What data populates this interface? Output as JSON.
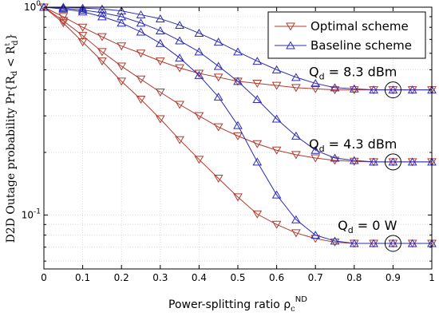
{
  "chart_data": {
    "type": "line",
    "xlabel": "Power-splitting ratio ρ",
    "xlabel_sub": "c",
    "xlabel_sup": "ND",
    "ylabel": "D2D Outage probability Pr{R",
    "ylabel_sub": "d",
    "ylabel_mid": " < R",
    "ylabel_sup2": "t",
    "ylabel_sub2": "d",
    "ylabel_end": "}",
    "yscale": "log",
    "xlim": [
      0,
      1
    ],
    "ylim": [
      0.055,
      1.0
    ],
    "x_ticks": [
      "0",
      "0.1",
      "0.2",
      "0.3",
      "0.4",
      "0.5",
      "0.6",
      "0.7",
      "0.8",
      "0.9",
      "1"
    ],
    "y_ticks": [
      {
        "base": "10",
        "exp": "0",
        "value": 1.0
      },
      {
        "base": "10",
        "exp": "-1",
        "value": 0.1
      }
    ],
    "grid": true,
    "legend_position": "top-right",
    "legend": [
      {
        "label": "Optimal scheme",
        "color": "#b03a2e",
        "marker": "triangle-down"
      },
      {
        "label": "Baseline scheme",
        "color": "#2b2bb5",
        "marker": "triangle-up"
      }
    ],
    "annotations": [
      {
        "text": "Q",
        "sub": "d",
        "rest": " = 8.3 dBm",
        "x": 0.9,
        "y": 0.4
      },
      {
        "text": "Q",
        "sub": "d",
        "rest": " = 4.3 dBm",
        "x": 0.9,
        "y": 0.18
      },
      {
        "text": "Q",
        "sub": "d",
        "rest": " = 0 W",
        "x": 0.9,
        "y": 0.073
      }
    ],
    "x": [
      0,
      0.05,
      0.1,
      0.15,
      0.2,
      0.25,
      0.3,
      0.35,
      0.4,
      0.45,
      0.5,
      0.55,
      0.6,
      0.65,
      0.7,
      0.75,
      0.8,
      0.85,
      0.9,
      0.95,
      1.0
    ],
    "series": [
      {
        "name": "Optimal scheme",
        "group": "8.3 dBm",
        "color": "#b03a2e",
        "marker": "down",
        "values": [
          1.0,
          0.9,
          0.8,
          0.72,
          0.65,
          0.6,
          0.55,
          0.51,
          0.48,
          0.46,
          0.44,
          0.43,
          0.42,
          0.41,
          0.405,
          0.4,
          0.4,
          0.4,
          0.4,
          0.4,
          0.4
        ]
      },
      {
        "name": "Optimal scheme",
        "group": "4.3 dBm",
        "color": "#b03a2e",
        "marker": "down",
        "values": [
          1.0,
          0.86,
          0.73,
          0.61,
          0.52,
          0.45,
          0.39,
          0.34,
          0.3,
          0.265,
          0.24,
          0.22,
          0.205,
          0.195,
          0.188,
          0.183,
          0.181,
          0.18,
          0.18,
          0.18,
          0.18
        ]
      },
      {
        "name": "Optimal scheme",
        "group": "0 W",
        "color": "#b03a2e",
        "marker": "down",
        "values": [
          1.0,
          0.84,
          0.68,
          0.55,
          0.44,
          0.36,
          0.29,
          0.23,
          0.185,
          0.15,
          0.122,
          0.101,
          0.09,
          0.082,
          0.077,
          0.074,
          0.073,
          0.073,
          0.073,
          0.073,
          0.073
        ]
      },
      {
        "name": "Baseline scheme",
        "group": "8.3 dBm",
        "color": "#2b2bb5",
        "marker": "up",
        "values": [
          1.0,
          1.0,
          0.99,
          0.98,
          0.96,
          0.92,
          0.88,
          0.82,
          0.75,
          0.68,
          0.61,
          0.55,
          0.5,
          0.46,
          0.43,
          0.41,
          0.405,
          0.4,
          0.4,
          0.4,
          0.4
        ]
      },
      {
        "name": "Baseline scheme",
        "group": "4.3 dBm",
        "color": "#2b2bb5",
        "marker": "up",
        "values": [
          1.0,
          0.99,
          0.97,
          0.94,
          0.9,
          0.84,
          0.77,
          0.69,
          0.61,
          0.52,
          0.44,
          0.36,
          0.29,
          0.24,
          0.205,
          0.188,
          0.183,
          0.18,
          0.18,
          0.18,
          0.18
        ]
      },
      {
        "name": "Baseline scheme",
        "group": "0 W",
        "color": "#2b2bb5",
        "marker": "up",
        "values": [
          1.0,
          0.98,
          0.95,
          0.9,
          0.84,
          0.76,
          0.67,
          0.57,
          0.47,
          0.37,
          0.27,
          0.18,
          0.125,
          0.095,
          0.08,
          0.075,
          0.073,
          0.073,
          0.073,
          0.073,
          0.073
        ]
      }
    ]
  }
}
